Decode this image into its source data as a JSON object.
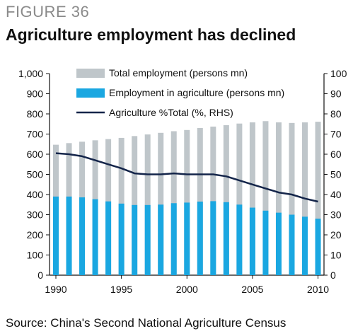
{
  "figure_label": "FIGURE 36",
  "title": "Agriculture employment has declined",
  "source": "Source: China's Second National Agriculture Census",
  "colors": {
    "total": "#bfc6ca",
    "agri": "#1aa7e1",
    "pct_line": "#14254a",
    "axis": "#111111"
  },
  "chart_data": {
    "type": "bar",
    "x": [
      1990,
      1991,
      1992,
      1993,
      1994,
      1995,
      1996,
      1997,
      1998,
      1999,
      2000,
      2001,
      2002,
      2003,
      2004,
      2005,
      2006,
      2007,
      2008,
      2009,
      2010
    ],
    "x_tick_labels": [
      "1990",
      "1995",
      "2000",
      "2005",
      "2010"
    ],
    "left_axis": {
      "min": 0,
      "max": 1000,
      "ticks": [
        "0",
        "100",
        "200",
        "300",
        "400",
        "500",
        "600",
        "700",
        "800",
        "900",
        "1,000"
      ]
    },
    "right_axis": {
      "min": 0,
      "max": 100,
      "ticks": [
        "0",
        "10",
        "20",
        "30",
        "40",
        "50",
        "60",
        "70",
        "80",
        "90",
        "100"
      ]
    },
    "legend_position": "top-right",
    "series": [
      {
        "name": "Total employment (persons mn)",
        "type": "bar",
        "axis": "left",
        "values": [
          647,
          655,
          662,
          669,
          675,
          681,
          690,
          698,
          706,
          714,
          720,
          730,
          737,
          744,
          752,
          758,
          764,
          758,
          755,
          758,
          761
        ]
      },
      {
        "name": "Employment in agriculture (persons mn)",
        "type": "bar",
        "axis": "left",
        "values": [
          390,
          390,
          386,
          377,
          366,
          355,
          348,
          348,
          350,
          357,
          360,
          365,
          367,
          362,
          350,
          335,
          320,
          310,
          300,
          290,
          280
        ]
      },
      {
        "name": "Agriculture %Total (%, RHS)",
        "type": "line",
        "axis": "right",
        "values": [
          60.5,
          60.0,
          59.0,
          57.0,
          55.0,
          53.0,
          50.5,
          50.0,
          50.0,
          50.5,
          50.0,
          50.0,
          50.0,
          49.0,
          47.0,
          45.0,
          43.0,
          41.0,
          40.0,
          38.0,
          36.5
        ]
      }
    ]
  }
}
